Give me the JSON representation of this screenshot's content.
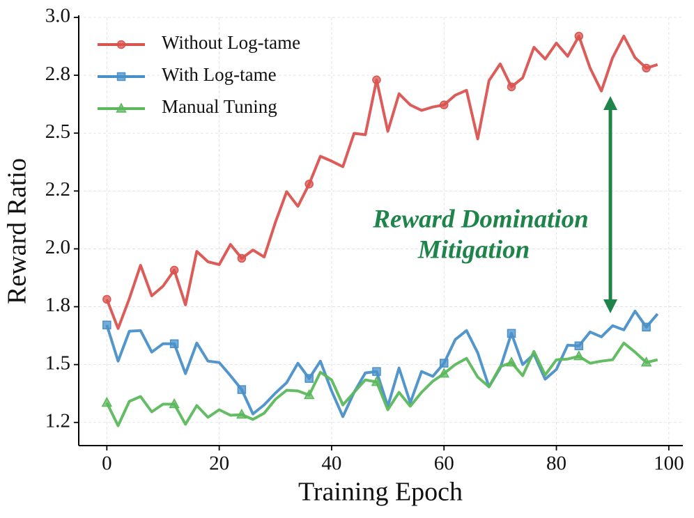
{
  "chart_data": {
    "type": "line",
    "xlabel": "Training Epoch",
    "ylabel": "Reward Ratio",
    "annotation": [
      "Reward Domination",
      "Mitigation"
    ],
    "x": [
      0,
      2,
      4,
      6,
      8,
      10,
      12,
      14,
      16,
      18,
      20,
      22,
      24,
      26,
      28,
      30,
      32,
      34,
      36,
      38,
      40,
      42,
      44,
      46,
      48,
      50,
      52,
      54,
      56,
      58,
      60,
      62,
      64,
      66,
      68,
      70,
      72,
      74,
      76,
      78,
      80,
      82,
      84,
      86,
      88,
      90,
      92,
      94,
      96,
      98
    ],
    "series": [
      {
        "name": "Without Log-tame",
        "color": "#d9534f",
        "marker": "circle",
        "values": [
          1.782,
          1.656,
          1.785,
          1.929,
          1.797,
          1.839,
          1.908,
          1.758,
          1.989,
          1.944,
          1.932,
          2.019,
          1.959,
          1.995,
          1.965,
          2.115,
          2.247,
          2.184,
          2.28,
          2.4,
          2.379,
          2.355,
          2.499,
          2.493,
          2.73,
          2.508,
          2.67,
          2.622,
          2.598,
          2.613,
          2.622,
          2.664,
          2.685,
          2.475,
          2.727,
          2.799,
          2.7,
          2.739,
          2.871,
          2.82,
          2.889,
          2.832,
          2.919,
          2.781,
          2.682,
          2.826,
          2.919,
          2.826,
          2.781,
          2.796
        ]
      },
      {
        "name": "With Log-tame",
        "color": "#4a90c8",
        "marker": "square",
        "values": [
          1.671,
          1.515,
          1.644,
          1.647,
          1.554,
          1.59,
          1.59,
          1.461,
          1.593,
          1.515,
          1.509,
          1.452,
          1.392,
          1.287,
          1.326,
          1.377,
          1.422,
          1.506,
          1.44,
          1.515,
          1.386,
          1.275,
          1.38,
          1.464,
          1.47,
          1.32,
          1.485,
          1.335,
          1.47,
          1.449,
          1.506,
          1.608,
          1.647,
          1.551,
          1.404,
          1.485,
          1.635,
          1.5,
          1.545,
          1.437,
          1.479,
          1.584,
          1.581,
          1.641,
          1.62,
          1.668,
          1.65,
          1.731,
          1.662,
          1.719
        ]
      },
      {
        "name": "Manual Tuning",
        "color": "#5cb85c",
        "marker": "triangle",
        "values": [
          1.335,
          1.236,
          1.341,
          1.362,
          1.296,
          1.329,
          1.329,
          1.242,
          1.323,
          1.272,
          1.305,
          1.281,
          1.284,
          1.263,
          1.29,
          1.35,
          1.389,
          1.386,
          1.368,
          1.467,
          1.434,
          1.326,
          1.38,
          1.434,
          1.425,
          1.305,
          1.38,
          1.32,
          1.38,
          1.428,
          1.461,
          1.5,
          1.527,
          1.446,
          1.404,
          1.491,
          1.509,
          1.452,
          1.557,
          1.455,
          1.521,
          1.524,
          1.536,
          1.506,
          1.515,
          1.521,
          1.593,
          1.554,
          1.509,
          1.521
        ]
      }
    ],
    "xlim": [
      -5,
      102.5
    ],
    "xticks": [
      0,
      20,
      40,
      60,
      80,
      100
    ],
    "ylim": [
      1.15,
      3.0
    ],
    "yticks": [
      {
        "value": 1.25,
        "label": "1.2"
      },
      1.5,
      {
        "value": 1.75,
        "label": "1.8"
      },
      {
        "value": 2,
        "label": "2.0"
      },
      {
        "value": 2.25,
        "label": "2.2"
      },
      2.5,
      {
        "value": 2.75,
        "label": "2.8"
      },
      {
        "value": 3,
        "label": "3.0"
      }
    ],
    "grid": true,
    "legend": "upper left"
  }
}
